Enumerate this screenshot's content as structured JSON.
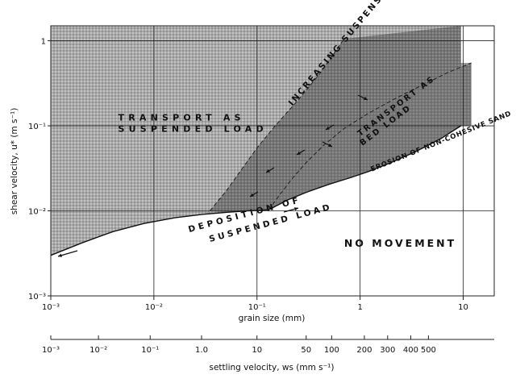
{
  "chart_data": {
    "type": "area",
    "xlabel": "grain size (mm)",
    "ylabel": "shear velocity, u* (m s⁻¹)",
    "x_scale": "log",
    "y_scale": "log",
    "xlim": [
      0.001,
      20
    ],
    "ylim": [
      0.001,
      1.5
    ],
    "grid": true,
    "x_ticks": [
      {
        "value": 0.001,
        "label": "10⁻³"
      },
      {
        "value": 0.01,
        "label": "10⁻²"
      },
      {
        "value": 0.1,
        "label": "10⁻¹"
      },
      {
        "value": 1,
        "label": "1"
      },
      {
        "value": 10,
        "label": "10"
      }
    ],
    "y_ticks": [
      {
        "value": 0.001,
        "label": "10⁻³"
      },
      {
        "value": 0.01,
        "label": "10⁻²"
      },
      {
        "value": 0.1,
        "label": "10⁻¹"
      },
      {
        "value": 1,
        "label": "1"
      }
    ],
    "settling_axis": {
      "label": "settling velocity, ws (mm s⁻¹)",
      "ticks": [
        {
          "label": "10⁻³",
          "grain_size": 0.001
        },
        {
          "label": "10⁻²",
          "grain_size": 0.0029
        },
        {
          "label": "10⁻¹",
          "grain_size": 0.0092
        },
        {
          "label": "1.0",
          "grain_size": 0.029
        },
        {
          "label": "10",
          "grain_size": 0.1
        },
        {
          "label": "50",
          "grain_size": 0.3
        },
        {
          "label": "100",
          "grain_size": 0.53
        },
        {
          "label": "200",
          "grain_size": 1.1
        },
        {
          "label": "300",
          "grain_size": 1.85
        },
        {
          "label": "400",
          "grain_size": 3.1
        },
        {
          "label": "500",
          "grain_size": 4.6
        }
      ]
    },
    "series": [
      {
        "x": [
          0.001,
          0.002,
          0.004,
          0.008,
          0.016,
          0.03,
          0.05,
          0.08,
          0.1,
          0.13
        ],
        "y": [
          0.003,
          0.0042,
          0.0057,
          0.0071,
          0.0083,
          0.0091,
          0.0096,
          0.01,
          0.0101,
          0.0103
        ]
      },
      {
        "x": [
          0.13,
          0.2,
          0.3,
          0.5,
          0.8,
          1.2,
          2,
          3.5,
          6,
          9.5
        ],
        "y": [
          0.0103,
          0.0135,
          0.0165,
          0.0205,
          0.0245,
          0.029,
          0.037,
          0.05,
          0.07,
          0.1
        ]
      },
      {
        "x": [
          0.035,
          0.05,
          0.07,
          0.1,
          0.15,
          0.25,
          0.4,
          0.7
        ],
        "y": [
          0.01,
          0.017,
          0.03,
          0.055,
          0.1,
          0.2,
          0.4,
          1.05
        ]
      },
      {
        "x": [
          0.13,
          0.17,
          0.22,
          0.3,
          0.45,
          0.7,
          1.2,
          2.2,
          4,
          7,
          12
        ],
        "y": [
          0.0103,
          0.016,
          0.024,
          0.037,
          0.06,
          0.093,
          0.14,
          0.21,
          0.3,
          0.42,
          0.55
        ]
      }
    ],
    "annotations": [
      {
        "text": "TRANSPORT AS",
        "x": 0.0045,
        "y": 0.115
      },
      {
        "text": "SUSPENDED LOAD",
        "x": 0.0045,
        "y": 0.085
      },
      {
        "text": "NO MOVEMENT",
        "x": 0.7,
        "y": 0.0038
      },
      {
        "text": "INCREASING SUSPENSION",
        "x": 0.22,
        "y": 0.17
      },
      {
        "text": "TRANSPORT AS",
        "x": 1.0,
        "y": 0.075
      },
      {
        "text": "BED LOAD",
        "x": 1.05,
        "y": 0.058
      },
      {
        "text": "EROSION OF NON-COHESIVE SAND",
        "x": 1.3,
        "y": 0.029
      },
      {
        "text": "DEPOSITION OF",
        "x": 0.022,
        "y": 0.0056
      },
      {
        "text": "SUSPENDED LOAD",
        "x": 0.035,
        "y": 0.0043
      }
    ]
  }
}
